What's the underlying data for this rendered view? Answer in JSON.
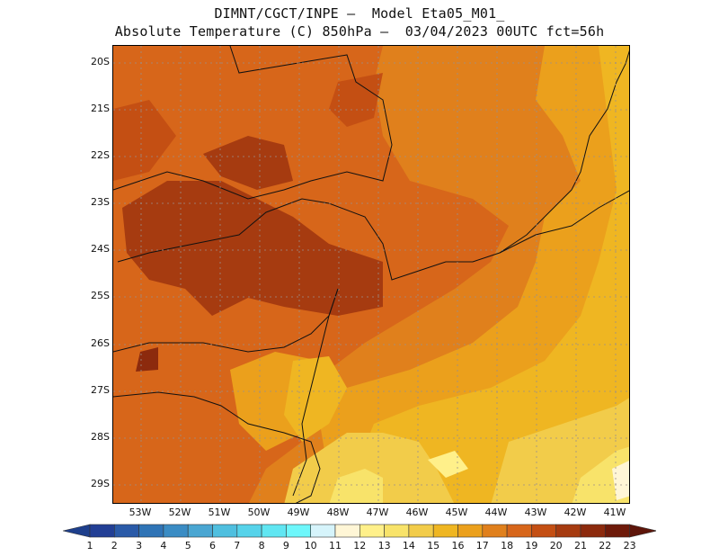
{
  "title": {
    "line1": "DIMNT/CGCT/INPE —  Model Eta05_M01_",
    "line2": "Absolute Temperature (C) 850hPa —  03/04/2023 00UTC fct=56h"
  },
  "map": {
    "lat_labels": [
      "20S",
      "21S",
      "22S",
      "23S",
      "24S",
      "25S",
      "26S",
      "27S",
      "28S",
      "29S"
    ],
    "lon_labels": [
      "53W",
      "52W",
      "51W",
      "50W",
      "49W",
      "48W",
      "47W",
      "46W",
      "45W",
      "44W",
      "43W",
      "42W",
      "41W"
    ]
  },
  "colorbar": {
    "labels": [
      "1",
      "2",
      "3",
      "4",
      "5",
      "6",
      "7",
      "8",
      "9",
      "10",
      "11",
      "12",
      "13",
      "14",
      "15",
      "16",
      "17",
      "18",
      "19",
      "20",
      "21",
      "22",
      "23"
    ],
    "colors": {
      "below": "#1e3f8c",
      "c1": "#223f95",
      "c2": "#2a5aa8",
      "c3": "#2f74b6",
      "c4": "#3a8cc4",
      "c5": "#4aa6d2",
      "c6": "#4fbfdf",
      "c7": "#56d3ea",
      "c8": "#60e6f2",
      "c9": "#6ef7fb",
      "c10": "#d6f4fb",
      "c11": "#fff6d6",
      "c12": "#fff08a",
      "c13": "#f8e36a",
      "c14": "#f2cc4a",
      "c15": "#efb622",
      "c16": "#eba01c",
      "c17": "#e0801c",
      "c18": "#d7661a",
      "c19": "#c44f13",
      "c20": "#a63b10",
      "c21": "#8c2a0d",
      "c22": "#6e1a0a",
      "above": "#5e150a"
    }
  }
}
